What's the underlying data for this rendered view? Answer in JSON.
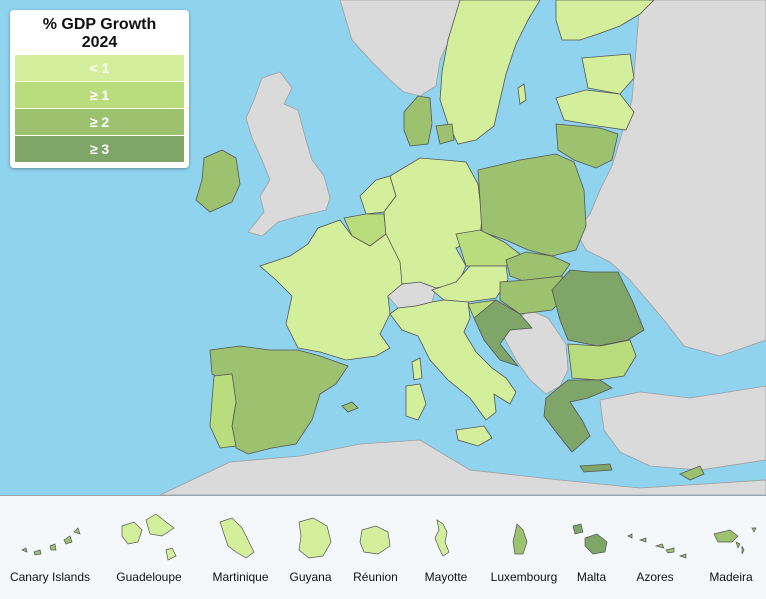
{
  "legend": {
    "title": "% GDP Growth",
    "year": "2024",
    "items": [
      {
        "label": "< 1",
        "color": "#d4ef9c"
      },
      {
        "label": "≥ 1",
        "color": "#b9dd7d"
      },
      {
        "label": "≥ 2",
        "color": "#9cc16f"
      },
      {
        "label": "≥ 3",
        "color": "#7fa568"
      }
    ]
  },
  "colors": {
    "sea": "#8fd3ee",
    "non_eu": "#dadada",
    "border": "#555555"
  },
  "insets": [
    {
      "label": "Canary Islands",
      "color": "#9cc16f"
    },
    {
      "label": "Guadeloupe",
      "color": "#d4ef9c"
    },
    {
      "label": "Martinique",
      "color": "#d4ef9c"
    },
    {
      "label": "Guyana",
      "color": "#d4ef9c"
    },
    {
      "label": "Réunion",
      "color": "#d4ef9c"
    },
    {
      "label": "Mayotte",
      "color": "#d4ef9c"
    },
    {
      "label": "Luxembourg",
      "color": "#9cc16f"
    },
    {
      "label": "Malta",
      "color": "#7fa568"
    },
    {
      "label": "Azores",
      "color": "#9cc16f"
    },
    {
      "label": "Madeira",
      "color": "#9cc16f"
    }
  ]
}
